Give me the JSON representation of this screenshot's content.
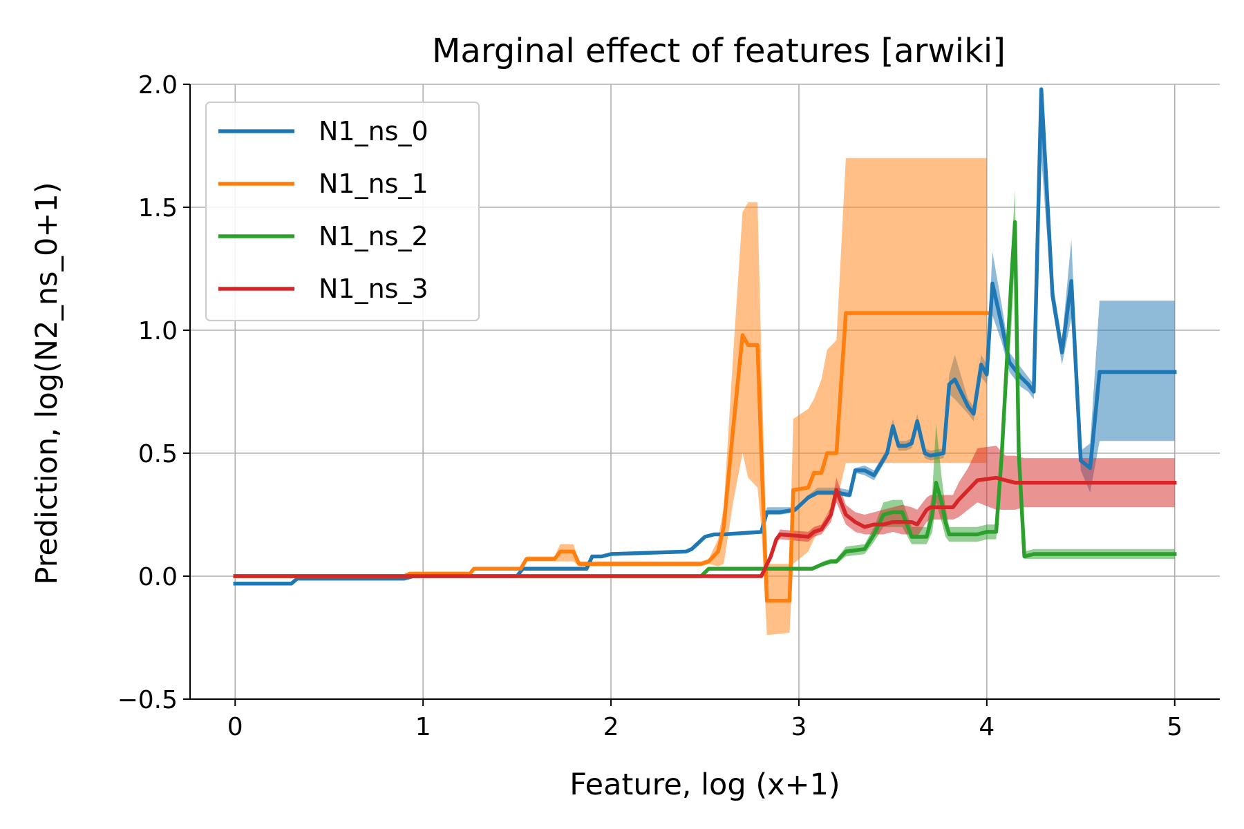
{
  "chart_data": {
    "type": "line",
    "title": "Marginal effect of features [arwiki]",
    "xlabel": "Feature, log (x+1)",
    "ylabel": "Prediction, log(N2_ns_0+1)",
    "xlim": [
      -0.24,
      5.24
    ],
    "ylim": [
      -0.5,
      2.0
    ],
    "xticks": [
      0,
      1,
      2,
      3,
      4,
      5
    ],
    "xtick_labels": [
      "0",
      "1",
      "2",
      "3",
      "4",
      "5"
    ],
    "yticks": [
      -0.5,
      0.0,
      0.5,
      1.0,
      1.5,
      2.0
    ],
    "ytick_labels": [
      "−0.5",
      "0.0",
      "0.5",
      "1.0",
      "1.5",
      "2.0"
    ],
    "grid": true,
    "legend_position": "upper-left",
    "series": [
      {
        "name": "N1_ns_0",
        "color": "#1f77b4",
        "x": [
          0,
          0.3,
          0.33,
          0.9,
          0.95,
          1.5,
          1.53,
          1.87,
          1.9,
          1.95,
          2.0,
          2.4,
          2.43,
          2.5,
          2.55,
          2.6,
          2.8,
          2.83,
          2.9,
          2.98,
          3.05,
          3.1,
          3.2,
          3.27,
          3.3,
          3.35,
          3.4,
          3.47,
          3.5,
          3.53,
          3.57,
          3.6,
          3.63,
          3.67,
          3.7,
          3.77,
          3.8,
          3.83,
          3.9,
          3.93,
          3.97,
          4.0,
          4.03,
          4.08,
          4.12,
          4.18,
          4.22,
          4.25,
          4.29,
          4.35,
          4.4,
          4.45,
          4.5,
          4.55,
          4.6,
          4.65,
          5.0
        ],
        "y": [
          -0.03,
          -0.03,
          -0.01,
          -0.01,
          0.0,
          0.0,
          0.03,
          0.03,
          0.08,
          0.08,
          0.09,
          0.1,
          0.11,
          0.16,
          0.17,
          0.17,
          0.18,
          0.26,
          0.26,
          0.27,
          0.32,
          0.34,
          0.34,
          0.33,
          0.43,
          0.43,
          0.41,
          0.5,
          0.61,
          0.53,
          0.53,
          0.54,
          0.63,
          0.5,
          0.49,
          0.5,
          0.78,
          0.8,
          0.69,
          0.66,
          0.86,
          0.82,
          1.19,
          1.02,
          0.87,
          0.81,
          0.78,
          0.75,
          1.98,
          1.14,
          0.91,
          1.2,
          0.47,
          0.44,
          0.83,
          0.83,
          0.83
        ],
        "band_lower": [
          -0.03,
          -0.03,
          -0.01,
          -0.01,
          0.0,
          0.0,
          0.03,
          0.03,
          0.08,
          0.08,
          0.09,
          0.1,
          0.11,
          0.16,
          0.17,
          0.17,
          0.18,
          0.25,
          0.25,
          0.26,
          0.31,
          0.33,
          0.33,
          0.32,
          0.42,
          0.41,
          0.39,
          0.48,
          0.58,
          0.51,
          0.51,
          0.52,
          0.6,
          0.48,
          0.47,
          0.48,
          0.74,
          0.72,
          0.66,
          0.63,
          0.81,
          0.78,
          1.06,
          0.95,
          0.83,
          0.77,
          0.75,
          0.72,
          1.7,
          1.09,
          0.86,
          1.05,
          0.43,
          0.34,
          0.55,
          0.55,
          0.55
        ],
        "band_upper": [
          -0.03,
          -0.03,
          -0.01,
          -0.01,
          0.0,
          0.0,
          0.03,
          0.03,
          0.08,
          0.08,
          0.09,
          0.1,
          0.11,
          0.16,
          0.17,
          0.17,
          0.18,
          0.28,
          0.28,
          0.28,
          0.33,
          0.36,
          0.36,
          0.35,
          0.44,
          0.45,
          0.43,
          0.52,
          0.64,
          0.55,
          0.55,
          0.56,
          0.66,
          0.52,
          0.51,
          0.52,
          0.82,
          0.9,
          0.72,
          0.69,
          0.9,
          0.86,
          1.32,
          1.1,
          0.91,
          0.85,
          0.81,
          0.78,
          2.0,
          1.2,
          0.96,
          1.37,
          0.51,
          0.54,
          1.12,
          1.12,
          1.12
        ]
      },
      {
        "name": "N1_ns_1",
        "color": "#ff7f0e",
        "x": [
          0,
          0.9,
          0.93,
          1.25,
          1.27,
          1.52,
          1.55,
          1.7,
          1.73,
          1.8,
          1.83,
          2.48,
          2.52,
          2.57,
          2.6,
          2.65,
          2.7,
          2.73,
          2.78,
          2.8,
          2.83,
          2.95,
          2.97,
          3.05,
          3.08,
          3.12,
          3.15,
          3.2,
          3.25,
          4.0
        ],
        "y": [
          0.0,
          0.0,
          0.01,
          0.01,
          0.03,
          0.03,
          0.07,
          0.07,
          0.1,
          0.1,
          0.05,
          0.05,
          0.06,
          0.1,
          0.2,
          0.6,
          0.98,
          0.94,
          0.94,
          0.5,
          -0.1,
          -0.1,
          0.35,
          0.36,
          0.42,
          0.42,
          0.5,
          0.5,
          1.07,
          1.07
        ],
        "band_lower": [
          0.0,
          0.0,
          0.01,
          0.01,
          0.03,
          0.03,
          0.06,
          0.06,
          0.06,
          0.06,
          0.04,
          0.04,
          0.05,
          0.04,
          0.05,
          0.3,
          0.5,
          0.4,
          0.36,
          0.2,
          -0.24,
          -0.23,
          0.05,
          0.1,
          0.15,
          0.2,
          0.25,
          0.3,
          0.46,
          0.46
        ],
        "band_upper": [
          0.0,
          0.0,
          0.01,
          0.01,
          0.03,
          0.03,
          0.08,
          0.08,
          0.13,
          0.13,
          0.06,
          0.06,
          0.07,
          0.15,
          0.28,
          0.9,
          1.48,
          1.52,
          1.52,
          0.9,
          0.05,
          0.05,
          0.64,
          0.68,
          0.72,
          0.8,
          0.92,
          0.96,
          1.7,
          1.7
        ]
      },
      {
        "name": "N1_ns_2",
        "color": "#2ca02c",
        "x": [
          0,
          2.48,
          2.52,
          2.77,
          2.8,
          3.07,
          3.13,
          3.17,
          3.2,
          3.25,
          3.35,
          3.4,
          3.45,
          3.5,
          3.55,
          3.6,
          3.68,
          3.71,
          3.73,
          3.76,
          3.78,
          3.8,
          3.95,
          4.0,
          4.05,
          4.08,
          4.13,
          4.15,
          4.17,
          4.2,
          4.25,
          5.0
        ],
        "y": [
          0.0,
          0.0,
          0.03,
          0.03,
          0.03,
          0.03,
          0.05,
          0.06,
          0.06,
          0.1,
          0.11,
          0.17,
          0.25,
          0.26,
          0.26,
          0.16,
          0.16,
          0.25,
          0.38,
          0.3,
          0.22,
          0.17,
          0.17,
          0.18,
          0.18,
          0.5,
          1.2,
          1.44,
          0.5,
          0.08,
          0.09,
          0.09
        ],
        "band_lower": [
          0.0,
          0.0,
          0.03,
          0.03,
          0.03,
          0.03,
          0.04,
          0.05,
          0.05,
          0.08,
          0.09,
          0.14,
          0.2,
          0.2,
          0.2,
          0.13,
          0.13,
          0.18,
          0.3,
          0.22,
          0.16,
          0.14,
          0.14,
          0.15,
          0.15,
          0.45,
          1.0,
          1.3,
          0.45,
          0.07,
          0.07,
          0.07
        ],
        "band_upper": [
          0.0,
          0.0,
          0.03,
          0.03,
          0.03,
          0.03,
          0.06,
          0.07,
          0.07,
          0.12,
          0.13,
          0.2,
          0.3,
          0.31,
          0.31,
          0.2,
          0.2,
          0.34,
          0.62,
          0.4,
          0.28,
          0.2,
          0.2,
          0.21,
          0.21,
          0.56,
          1.3,
          1.57,
          0.56,
          0.1,
          0.11,
          0.11
        ]
      },
      {
        "name": "N1_ns_3",
        "color": "#d62728",
        "x": [
          0,
          2.77,
          2.8,
          2.85,
          2.88,
          2.9,
          3.05,
          3.08,
          3.12,
          3.17,
          3.2,
          3.25,
          3.3,
          3.35,
          3.4,
          3.45,
          3.5,
          3.55,
          3.6,
          3.63,
          3.68,
          3.7,
          3.82,
          3.85,
          3.9,
          3.95,
          4.05,
          4.1,
          4.15,
          4.2,
          5.0
        ],
        "y": [
          0.0,
          0.0,
          0.0,
          0.08,
          0.15,
          0.17,
          0.16,
          0.18,
          0.19,
          0.25,
          0.35,
          0.25,
          0.22,
          0.2,
          0.21,
          0.21,
          0.22,
          0.22,
          0.22,
          0.21,
          0.27,
          0.28,
          0.28,
          0.31,
          0.35,
          0.39,
          0.4,
          0.39,
          0.38,
          0.38,
          0.38
        ],
        "band_lower": [
          0.0,
          0.0,
          0.0,
          0.07,
          0.14,
          0.15,
          0.14,
          0.16,
          0.17,
          0.22,
          0.3,
          0.21,
          0.18,
          0.17,
          0.17,
          0.17,
          0.18,
          0.17,
          0.17,
          0.16,
          0.22,
          0.23,
          0.23,
          0.24,
          0.27,
          0.3,
          0.27,
          0.27,
          0.27,
          0.28,
          0.28
        ],
        "band_upper": [
          0.0,
          0.0,
          0.0,
          0.09,
          0.16,
          0.19,
          0.18,
          0.2,
          0.21,
          0.28,
          0.4,
          0.29,
          0.26,
          0.25,
          0.26,
          0.27,
          0.28,
          0.29,
          0.28,
          0.27,
          0.32,
          0.33,
          0.33,
          0.38,
          0.44,
          0.52,
          0.53,
          0.49,
          0.49,
          0.48,
          0.48
        ]
      }
    ]
  }
}
